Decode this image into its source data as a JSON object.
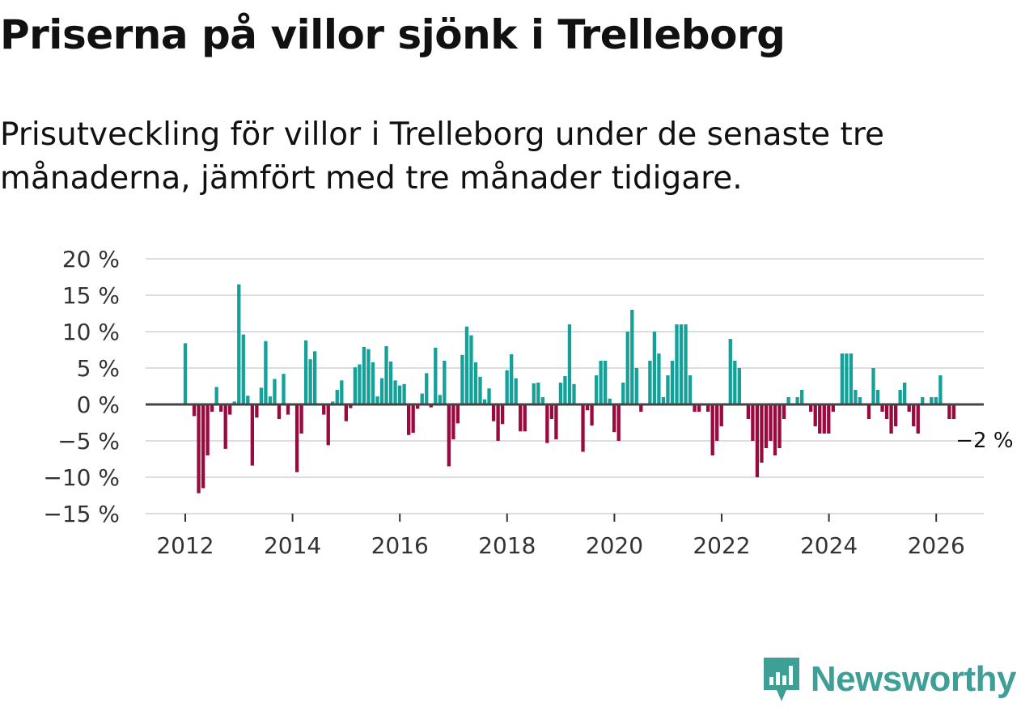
{
  "title": "Priserna på villor sjönk i Trelleborg",
  "subtitle": "Prisutveckling för villor i Trelleborg under de senaste tre månaderna, jämfört med tre månader tidigare.",
  "brand": {
    "name": "Newsworthy"
  },
  "colors": {
    "positive": "#14a199",
    "negative": "#9b0a3e",
    "grid": "#dddddd",
    "zero": "#444444"
  },
  "chart_data": {
    "type": "bar",
    "title": "Priserna på villor sjönk i Trelleborg",
    "xlabel": "",
    "ylabel": "",
    "ylim": [
      -15,
      20
    ],
    "grid": true,
    "x_start": 2012.0,
    "x_step": 0.0833,
    "y_ticks": [
      {
        "value": 20,
        "label": "20 %"
      },
      {
        "value": 15,
        "label": "15 %"
      },
      {
        "value": 10,
        "label": "10 %"
      },
      {
        "value": 5,
        "label": "5 %"
      },
      {
        "value": 0,
        "label": "0 %"
      },
      {
        "value": -5,
        "label": "−5 %"
      },
      {
        "value": -10,
        "label": "−10 %"
      },
      {
        "value": -15,
        "label": "−15 %"
      }
    ],
    "x_ticks": [
      {
        "value": 2012,
        "label": "2012"
      },
      {
        "value": 2014,
        "label": "2014"
      },
      {
        "value": 2016,
        "label": "2016"
      },
      {
        "value": 2018,
        "label": "2018"
      },
      {
        "value": 2020,
        "label": "2020"
      },
      {
        "value": 2022,
        "label": "2022"
      },
      {
        "value": 2024,
        "label": "2024"
      },
      {
        "value": 2026,
        "label": "2026"
      }
    ],
    "end_label": "−2 %",
    "values": [
      8.4,
      0,
      -1.6,
      -12.2,
      -11.5,
      -7,
      -1,
      2.4,
      -1,
      -6.1,
      -1.4,
      0.4,
      16.5,
      9.6,
      1.2,
      -8.4,
      -1.8,
      2.3,
      8.7,
      1.1,
      3.5,
      -2,
      4.2,
      -1.4,
      0,
      -9.3,
      -4,
      8.8,
      6.2,
      7.3,
      0,
      -1.4,
      -5.6,
      0.4,
      2,
      3.3,
      -2.3,
      -0.5,
      5.1,
      5.5,
      7.9,
      7.6,
      5.8,
      1.1,
      3.6,
      8,
      5.9,
      3.3,
      2.6,
      2.8,
      -4.2,
      -3.9,
      -0.6,
      1.5,
      4.3,
      -0.4,
      7.8,
      1.3,
      6,
      -8.5,
      -4.8,
      -2.6,
      6.8,
      10.7,
      9.5,
      5.8,
      3.8,
      0.7,
      2.2,
      -2.3,
      -5,
      -2.7,
      4.7,
      6.9,
      3.6,
      -3.7,
      -3.7,
      0,
      2.9,
      3,
      1,
      -5.3,
      -2,
      -4.8,
      3,
      3.9,
      11,
      2.8,
      0,
      -6.5,
      -0.8,
      -2.9,
      4,
      6,
      6,
      0.8,
      -3.8,
      -5,
      3,
      10,
      13,
      5,
      -1,
      0,
      6,
      10,
      7,
      1,
      4,
      6,
      11,
      11,
      11,
      4,
      -1,
      -1,
      0,
      -1,
      -7,
      -5,
      -3,
      0,
      9,
      6,
      5,
      0,
      -2,
      -5,
      -10,
      -8,
      -6,
      -5,
      -7,
      -6,
      -2,
      1,
      0,
      1,
      2,
      0,
      -1,
      -3,
      -4,
      -4,
      -4,
      -1,
      0,
      7,
      7,
      7,
      2,
      1,
      0,
      -2,
      5,
      2,
      -1,
      -2,
      -4,
      -3,
      2,
      3,
      -1,
      -3,
      -4,
      1,
      0,
      1,
      1,
      4,
      0,
      -2,
      -2
    ]
  }
}
